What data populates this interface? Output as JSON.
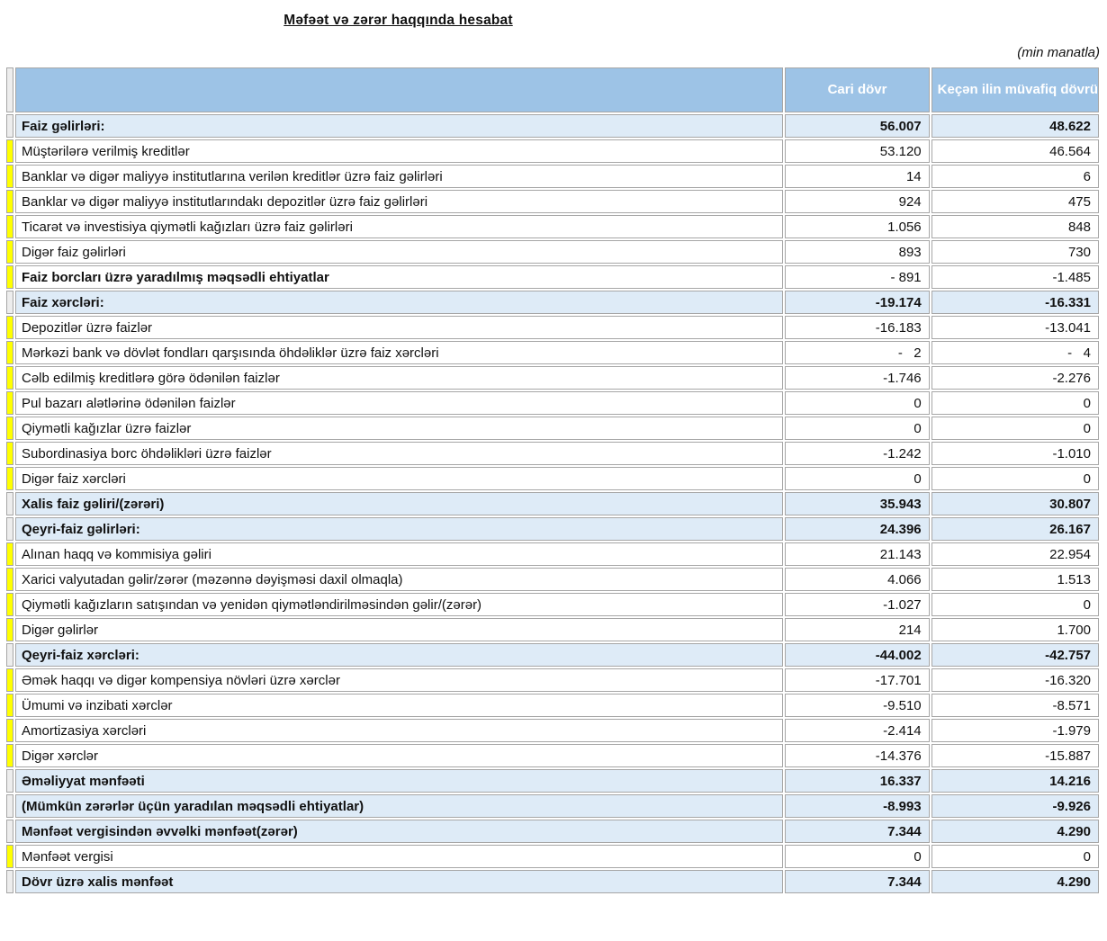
{
  "page": {
    "title": "Məfəət və zərər haqqında hesabat",
    "unit_note": "(min manatla)"
  },
  "colors": {
    "header_bg": "#9dc3e6",
    "header_text": "#ffffff",
    "section_row_bg": "#deebf7",
    "marker_yellow": "#ffff00",
    "grid_border": "#a6a6a6"
  },
  "table": {
    "columns": {
      "current": "Cari dövr",
      "previous": "Keçən ilin müvafiq dövrü"
    },
    "rows": [
      {
        "label": "Faiz gəlirləri:",
        "current": "56.007",
        "previous": "48.622",
        "style": "section",
        "marker": false
      },
      {
        "label": "Müştərilərə verilmiş kreditlər",
        "current": "53.120",
        "previous": "46.564",
        "style": "detail",
        "marker": true
      },
      {
        "label": "Banklar və digər maliyyə institutlarına verilən kreditlər üzrə faiz gəlirləri",
        "current": "14",
        "previous": "6",
        "style": "detail",
        "marker": true
      },
      {
        "label": "Banklar və digər maliyyə institutlarındakı depozitlər üzrə faiz gəlirləri",
        "current": "924",
        "previous": "475",
        "style": "detail",
        "marker": true
      },
      {
        "label": "Ticarət və investisiya qiymətli kağızları üzrə faiz gəlirləri",
        "current": "1.056",
        "previous": "848",
        "style": "detail",
        "marker": true
      },
      {
        "label": "Digər faiz gəlirləri",
        "current": "893",
        "previous": "730",
        "style": "detail",
        "marker": true
      },
      {
        "label": "Faiz borcları üzrə yaradılmış məqsədli ehtiyatlar",
        "current": "- 891",
        "previous": "-1.485",
        "style": "detail-bold",
        "marker": true
      },
      {
        "label": "Faiz xərcləri:",
        "current": "-19.174",
        "previous": "-16.331",
        "style": "section",
        "marker": false
      },
      {
        "label": "Depozitlər üzrə faizlər",
        "current": "-16.183",
        "previous": "-13.041",
        "style": "detail",
        "marker": true
      },
      {
        "label": "Mərkəzi bank və dövlət fondları qarşısında öhdəliklər üzrə faiz xərcləri",
        "current": "-   2",
        "previous": "-   4",
        "style": "detail",
        "marker": true
      },
      {
        "label": "Cəlb edilmiş kreditlərə görə ödənilən faizlər",
        "current": "-1.746",
        "previous": "-2.276",
        "style": "detail",
        "marker": true
      },
      {
        "label": "Pul bazarı alətlərinə ödənilən faizlər",
        "current": "0",
        "previous": "0",
        "style": "detail",
        "marker": true
      },
      {
        "label": "Qiymətli kağızlar üzrə faizlər",
        "current": "0",
        "previous": "0",
        "style": "detail",
        "marker": true
      },
      {
        "label": "Subordinasiya borc öhdəlikləri üzrə faizlər",
        "current": "-1.242",
        "previous": "-1.010",
        "style": "detail",
        "marker": true
      },
      {
        "label": "Digər faiz xərcləri",
        "current": "0",
        "previous": "0",
        "style": "detail",
        "marker": true
      },
      {
        "label": "Xalis faiz gəliri/(zərəri)",
        "current": "35.943",
        "previous": "30.807",
        "style": "section",
        "marker": false
      },
      {
        "label": "Qeyri-faiz gəlirləri:",
        "current": "24.396",
        "previous": "26.167",
        "style": "section",
        "marker": false
      },
      {
        "label": "Alınan haqq və kommisiya gəliri",
        "current": "21.143",
        "previous": "22.954",
        "style": "detail",
        "marker": true
      },
      {
        "label": "Xarici valyutadan gəlir/zərər (məzənnə dəyişməsi daxil olmaqla)",
        "current": "4.066",
        "previous": "1.513",
        "style": "detail",
        "marker": true
      },
      {
        "label": "Qiymətli kağızların satışından və yenidən qiymətləndirilməsindən gəlir/(zərər)",
        "current": "-1.027",
        "previous": "0",
        "style": "detail",
        "marker": true
      },
      {
        "label": "Digər gəlirlər",
        "current": "214",
        "previous": "1.700",
        "style": "detail",
        "marker": true
      },
      {
        "label": "Qeyri-faiz xərcləri:",
        "current": "-44.002",
        "previous": "-42.757",
        "style": "section",
        "marker": false
      },
      {
        "label": "Əmək haqqı və digər kompensiya növləri üzrə xərclər",
        "current": "-17.701",
        "previous": "-16.320",
        "style": "detail",
        "marker": true
      },
      {
        "label": "Ümumi və inzibati xərclər",
        "current": "-9.510",
        "previous": "-8.571",
        "style": "detail",
        "marker": true
      },
      {
        "label": "Amortizasiya xərcləri",
        "current": "-2.414",
        "previous": "-1.979",
        "style": "detail",
        "marker": true
      },
      {
        "label": "Digər xərclər",
        "current": "-14.376",
        "previous": "-15.887",
        "style": "detail",
        "marker": true
      },
      {
        "label": "Əməliyyat mənfəəti",
        "current": "16.337",
        "previous": "14.216",
        "style": "section",
        "marker": false
      },
      {
        "label": "(Mümkün zərərlər üçün yaradılan məqsədli ehtiyatlar)",
        "current": "-8.993",
        "previous": "-9.926",
        "style": "section",
        "marker": false
      },
      {
        "label": "Mənfəət vergisindən əvvəlki mənfəət(zərər)",
        "current": "7.344",
        "previous": "4.290",
        "style": "section",
        "marker": false
      },
      {
        "label": "Mənfəət vergisi",
        "current": "0",
        "previous": "0",
        "style": "detail",
        "marker": true
      },
      {
        "label": "Dövr üzrə xalis mənfəət",
        "current": "7.344",
        "previous": "4.290",
        "style": "section",
        "marker": false
      }
    ]
  }
}
